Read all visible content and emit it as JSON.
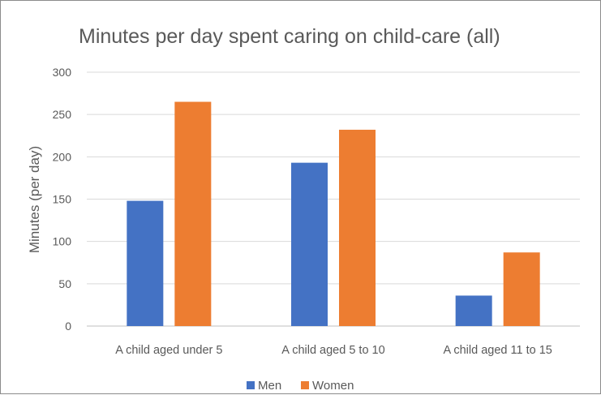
{
  "chart_data": {
    "type": "bar",
    "title": "Minutes per day spent caring on child-care (all)",
    "xlabel": "",
    "ylabel": "Minutes (per day)",
    "ylim": [
      0,
      300
    ],
    "yticks": [
      0,
      50,
      100,
      150,
      200,
      250,
      300
    ],
    "grid": true,
    "legend_position": "bottom",
    "categories": [
      "A child aged under 5",
      "A child aged 5 to 10",
      "A child aged 11 to 15"
    ],
    "series": [
      {
        "name": "Men",
        "values": [
          148,
          193,
          36
        ],
        "color": "#4472c4"
      },
      {
        "name": "Women",
        "values": [
          265,
          232,
          87
        ],
        "color": "#ed7d31"
      }
    ]
  }
}
